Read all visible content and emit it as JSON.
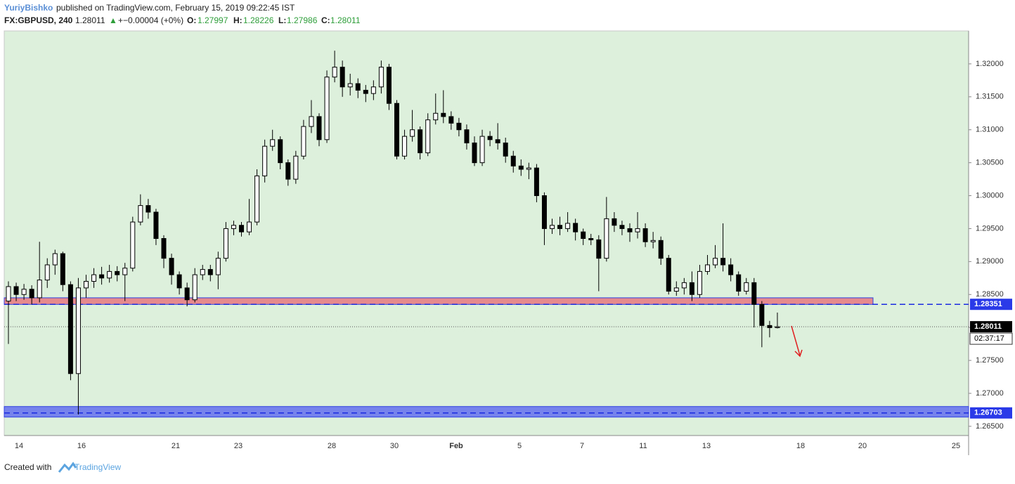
{
  "header": {
    "author": "YuriyBishko",
    "published": "published on TradingView.com, February 15, 2019 09:22:45 IST",
    "symbol": "FX:GBPUSD, 240",
    "arrow": "▲",
    "change": "+−0.00004 (+0%)",
    "o_label": "O:",
    "h_label": "H:",
    "l_label": "L:",
    "c_label": "C:"
  },
  "footer": {
    "created": "Created with",
    "brand": "TradingView"
  },
  "chart_data": {
    "type": "candlestick",
    "open": [
      1.284,
      1.2862,
      1.285,
      1.2858,
      1.2845,
      1.2872,
      1.2895,
      1.2912,
      1.2865,
      1.273,
      1.286,
      1.287,
      1.288,
      1.2875,
      1.2885,
      1.288,
      1.289,
      1.296,
      1.2985,
      1.2975,
      1.2935,
      1.2905,
      1.288,
      1.286,
      1.2842,
      1.288,
      1.2888,
      1.288,
      1.2905,
      1.295,
      1.2955,
      1.2945,
      1.296,
      1.303,
      1.3075,
      1.3085,
      1.305,
      1.3025,
      1.306,
      1.3105,
      1.312,
      1.3085,
      1.318,
      1.3195,
      1.3165,
      1.317,
      1.316,
      1.3155,
      1.3165,
      1.3195,
      1.314,
      1.306,
      1.309,
      1.31,
      1.3065,
      1.3115,
      1.3125,
      1.312,
      1.311,
      1.31,
      1.308,
      1.305,
      1.309,
      1.3085,
      1.308,
      1.306,
      1.3045,
      1.304,
      1.3042,
      1.3,
      1.295,
      1.2955,
      1.295,
      1.2958,
      1.2945,
      1.2935,
      1.2933,
      1.2905,
      1.2965,
      1.2955,
      1.295,
      1.2945,
      1.295,
      1.293,
      1.2932,
      1.2905,
      1.2855,
      1.286,
      1.2868,
      1.285,
      1.2885,
      1.2895,
      1.2905,
      1.2895,
      1.288,
      1.2855,
      1.2868,
      1.2835,
      1.2803,
      1.27997
    ],
    "high": [
      1.287,
      1.2868,
      1.2866,
      1.2864,
      1.293,
      1.2905,
      1.2918,
      1.2915,
      1.287,
      1.2875,
      1.288,
      1.289,
      1.2892,
      1.2895,
      1.2893,
      1.2898,
      1.2968,
      1.3002,
      1.2995,
      1.298,
      1.294,
      1.2912,
      1.2885,
      1.2868,
      1.289,
      1.2895,
      1.2895,
      1.2915,
      1.296,
      1.2962,
      1.296,
      1.2995,
      1.304,
      1.3085,
      1.31,
      1.309,
      1.3055,
      1.3068,
      1.3115,
      1.3145,
      1.3125,
      1.319,
      1.322,
      1.3205,
      1.3185,
      1.3178,
      1.3168,
      1.3175,
      1.3205,
      1.32,
      1.3145,
      1.31,
      1.313,
      1.3105,
      1.3125,
      1.3155,
      1.316,
      1.3128,
      1.3118,
      1.3108,
      1.309,
      1.31,
      1.3098,
      1.311,
      1.3088,
      1.3068,
      1.3055,
      1.305,
      1.3048,
      1.3005,
      1.2965,
      1.2968,
      1.2975,
      1.2965,
      1.295,
      1.2942,
      1.294,
      1.2998,
      1.2975,
      1.2962,
      1.2958,
      1.2975,
      1.2958,
      1.2945,
      1.2938,
      1.291,
      1.287,
      1.2875,
      1.2885,
      1.2895,
      1.291,
      1.2925,
      1.2958,
      1.2905,
      1.2885,
      1.2875,
      1.2875,
      1.284,
      1.281,
      1.28226
    ],
    "low": [
      1.2775,
      1.284,
      1.2842,
      1.2835,
      1.2838,
      1.286,
      1.288,
      1.2855,
      1.272,
      1.2668,
      1.2845,
      1.286,
      1.2865,
      1.2868,
      1.287,
      1.284,
      1.2885,
      1.2955,
      1.2965,
      1.2925,
      1.289,
      1.2865,
      1.285,
      1.2832,
      1.2838,
      1.2872,
      1.287,
      1.2858,
      1.29,
      1.294,
      1.2938,
      1.294,
      1.2955,
      1.302,
      1.3068,
      1.304,
      1.3015,
      1.3018,
      1.3055,
      1.3095,
      1.3075,
      1.308,
      1.3172,
      1.315,
      1.3152,
      1.3148,
      1.3142,
      1.3145,
      1.3155,
      1.313,
      1.3055,
      1.3055,
      1.3082,
      1.3055,
      1.306,
      1.3108,
      1.311,
      1.31,
      1.309,
      1.307,
      1.3045,
      1.3045,
      1.3075,
      1.307,
      1.305,
      1.3035,
      1.303,
      1.3025,
      1.299,
      1.2925,
      1.2942,
      1.294,
      1.2945,
      1.2932,
      1.2925,
      1.2925,
      1.2855,
      1.29,
      1.2945,
      1.294,
      1.293,
      1.2935,
      1.2922,
      1.292,
      1.2895,
      1.285,
      1.2848,
      1.285,
      1.284,
      1.2845,
      1.288,
      1.289,
      1.2885,
      1.287,
      1.2848,
      1.285,
      1.28,
      1.277,
      1.2785,
      1.27986
    ],
    "close": [
      1.2862,
      1.285,
      1.2858,
      1.2845,
      1.2872,
      1.2895,
      1.2912,
      1.2865,
      1.273,
      1.286,
      1.287,
      1.288,
      1.2875,
      1.2885,
      1.288,
      1.289,
      1.296,
      1.2985,
      1.2975,
      1.2935,
      1.2905,
      1.288,
      1.286,
      1.2842,
      1.288,
      1.2888,
      1.288,
      1.2905,
      1.295,
      1.2955,
      1.2945,
      1.296,
      1.303,
      1.3075,
      1.3085,
      1.305,
      1.3025,
      1.306,
      1.3105,
      1.312,
      1.3085,
      1.318,
      1.3195,
      1.3165,
      1.317,
      1.316,
      1.3155,
      1.3165,
      1.3195,
      1.314,
      1.306,
      1.309,
      1.31,
      1.3065,
      1.3115,
      1.3125,
      1.312,
      1.311,
      1.31,
      1.308,
      1.305,
      1.309,
      1.3085,
      1.308,
      1.306,
      1.3045,
      1.304,
      1.3042,
      1.3,
      1.295,
      1.2955,
      1.295,
      1.2958,
      1.2945,
      1.2935,
      1.2933,
      1.2905,
      1.2965,
      1.2955,
      1.295,
      1.2945,
      1.295,
      1.293,
      1.2932,
      1.2905,
      1.2855,
      1.286,
      1.2868,
      1.285,
      1.2885,
      1.2895,
      1.2905,
      1.2895,
      1.288,
      1.2855,
      1.2868,
      1.2835,
      1.2803,
      1.27997,
      1.28011
    ],
    "up_color": "#ffffff",
    "down_color": "#000000",
    "ylim": [
      1.2636,
      1.325
    ],
    "yticks": [
      {
        "value": 1.265,
        "label": "1.26500"
      },
      {
        "value": 1.27,
        "label": "1.27000"
      },
      {
        "value": 1.275,
        "label": "1.27500"
      },
      {
        "value": 1.28,
        "label": "1.28000"
      },
      {
        "value": 1.285,
        "label": "1.28500"
      },
      {
        "value": 1.29,
        "label": "1.29000"
      },
      {
        "value": 1.295,
        "label": "1.29500"
      },
      {
        "value": 1.3,
        "label": "1.30000"
      },
      {
        "value": 1.305,
        "label": "1.30500"
      },
      {
        "value": 1.31,
        "label": "1.31000"
      },
      {
        "value": 1.315,
        "label": "1.31500"
      },
      {
        "value": 1.32,
        "label": "1.32000"
      }
    ],
    "xtick_labels": [
      "14",
      "16",
      "21",
      "23",
      "28",
      "30",
      "Feb",
      "5",
      "7",
      "11",
      "13",
      "18",
      "20",
      "25"
    ],
    "zones": [
      {
        "from": 1.2845,
        "to": 1.2835,
        "color": "#e87880",
        "level": {
          "value": 1.28351,
          "label": "1.28351"
        }
      },
      {
        "from": 1.268,
        "to": 1.2664,
        "color": "#6470f0",
        "level": {
          "value": 1.26703,
          "label": "1.26703"
        }
      }
    ],
    "countdown": "02:37:17"
  }
}
